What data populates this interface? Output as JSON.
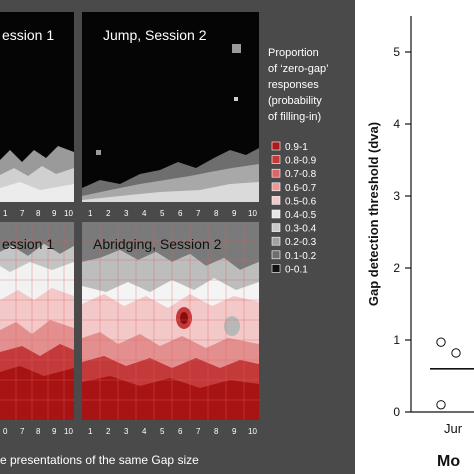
{
  "left_figure": {
    "panels": [
      {
        "title": "ession 1",
        "tick_labels": [
          "1",
          "7",
          "8",
          "9",
          "10"
        ]
      },
      {
        "title": "Jump, Session 2",
        "tick_labels": [
          "1",
          "2",
          "3",
          "4",
          "5",
          "6",
          "7",
          "8",
          "9",
          "10"
        ]
      },
      {
        "title": "ession 1",
        "tick_labels": [
          "0",
          "7",
          "8",
          "9",
          "10"
        ]
      },
      {
        "title": "Abridging, Session 2",
        "tick_labels": [
          "1",
          "2",
          "3",
          "4",
          "5",
          "6",
          "7",
          "8",
          "9",
          "10"
        ]
      }
    ],
    "legend": {
      "title_lines": [
        "Proportion",
        "of ‘zero-gap’",
        "responses",
        "(probability",
        "of filling-in)"
      ],
      "bins": [
        {
          "label": "0.9-1",
          "color": "#b01818"
        },
        {
          "label": "0.8-0.9",
          "color": "#c43a3a"
        },
        {
          "label": "0.7-0.8",
          "color": "#d86868"
        },
        {
          "label": "0.6-0.7",
          "color": "#e89a9a"
        },
        {
          "label": "0.5-0.6",
          "color": "#f3c8c8"
        },
        {
          "label": "0.4-0.5",
          "color": "#e8e8e8"
        },
        {
          "label": "0.3-0.4",
          "color": "#c8c8c8"
        },
        {
          "label": "0.2-0.3",
          "color": "#a0a0a0"
        },
        {
          "label": "0.1-0.2",
          "color": "#6e6e6e"
        },
        {
          "label": "0-0.1",
          "color": "#111111"
        }
      ]
    },
    "bottom_caption": "e presentations of the same Gap size"
  },
  "chart_data": {
    "type": "scatter",
    "ylabel": "Gap detection threshold (dva)",
    "ylim": [
      0,
      5.5
    ],
    "yticks": [
      0,
      1,
      2,
      3,
      4,
      5
    ],
    "categories": [
      "Jur"
    ],
    "xlabel": "Mo",
    "series": [
      {
        "category": "Jur",
        "values": [
          0.97,
          0.82,
          0.1
        ],
        "median": 0.6
      }
    ]
  }
}
